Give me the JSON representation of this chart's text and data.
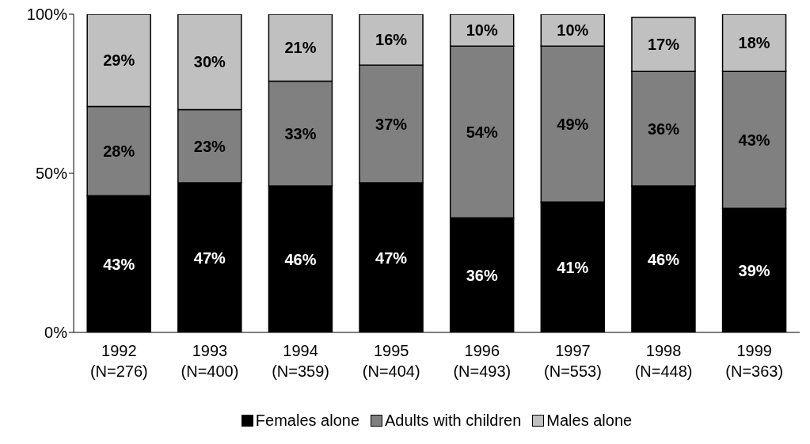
{
  "chart_data": {
    "type": "bar",
    "stacked": true,
    "grid": false,
    "legend": "bottom",
    "categories": [
      "1992\n(N=276)",
      "1993\n(N=400)",
      "1994\n(N=359)",
      "1995\n(N=404)",
      "1996\n(N=493)",
      "1997\n(N=553)",
      "1998\n(N=448)",
      "1999\n(N=363)"
    ],
    "series": [
      {
        "name": "Females alone",
        "color": "#000000",
        "values": [
          43,
          47,
          46,
          47,
          36,
          41,
          46,
          39
        ],
        "value_labels": [
          "43%",
          "47%",
          "46%",
          "47%",
          "36%",
          "41%",
          "46%",
          "39%"
        ]
      },
      {
        "name": "Adults with children",
        "color": "#808080",
        "values": [
          28,
          23,
          33,
          37,
          54,
          49,
          36,
          43
        ],
        "value_labels": [
          "28%",
          "23%",
          "33%",
          "37%",
          "54%",
          "49%",
          "36%",
          "43%"
        ]
      },
      {
        "name": "Males alone",
        "color": "#c0c0c0",
        "values": [
          29,
          30,
          21,
          16,
          10,
          10,
          17,
          18
        ],
        "value_labels": [
          "29%",
          "30%",
          "21%",
          "16%",
          "10%",
          "10%",
          "17%",
          "18%"
        ]
      }
    ],
    "ylim": [
      0,
      100
    ],
    "yticks": [
      {
        "value": 0,
        "label": "0%"
      },
      {
        "value": 50,
        "label": "50%"
      },
      {
        "value": 100,
        "label": "100%"
      }
    ]
  }
}
